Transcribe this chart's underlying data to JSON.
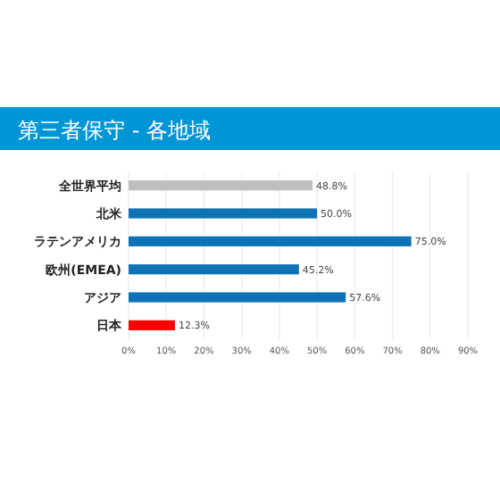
{
  "chart_data": {
    "type": "bar",
    "orientation": "horizontal",
    "title": "第三者保守 - 各地域",
    "categories": [
      "全世界平均",
      "北米",
      "ラテンアメリカ",
      "欧州(EMEA)",
      "アジア",
      "日本"
    ],
    "values": [
      48.8,
      50.0,
      75.0,
      45.2,
      57.6,
      12.3
    ],
    "colors": [
      "#bfbfbf",
      "#0f72b5",
      "#0f72b5",
      "#0f72b5",
      "#0f72b5",
      "#ff0000"
    ],
    "value_labels": [
      "48.8%",
      "50.0%",
      "75.0%",
      "45.2%",
      "57.6%",
      "12.3%"
    ],
    "xlim": [
      0,
      90
    ],
    "xticks": [
      {
        "value": 0,
        "label": "0%"
      },
      {
        "value": 10,
        "label": "10%"
      },
      {
        "value": 20,
        "label": "20%"
      },
      {
        "value": 30,
        "label": "30%"
      },
      {
        "value": 40,
        "label": "40%"
      },
      {
        "value": 50,
        "label": "50%"
      },
      {
        "value": 60,
        "label": "60%"
      },
      {
        "value": 70,
        "label": "70%"
      },
      {
        "value": 80,
        "label": "80%"
      },
      {
        "value": 90,
        "label": "90%"
      }
    ],
    "grid": "x"
  }
}
